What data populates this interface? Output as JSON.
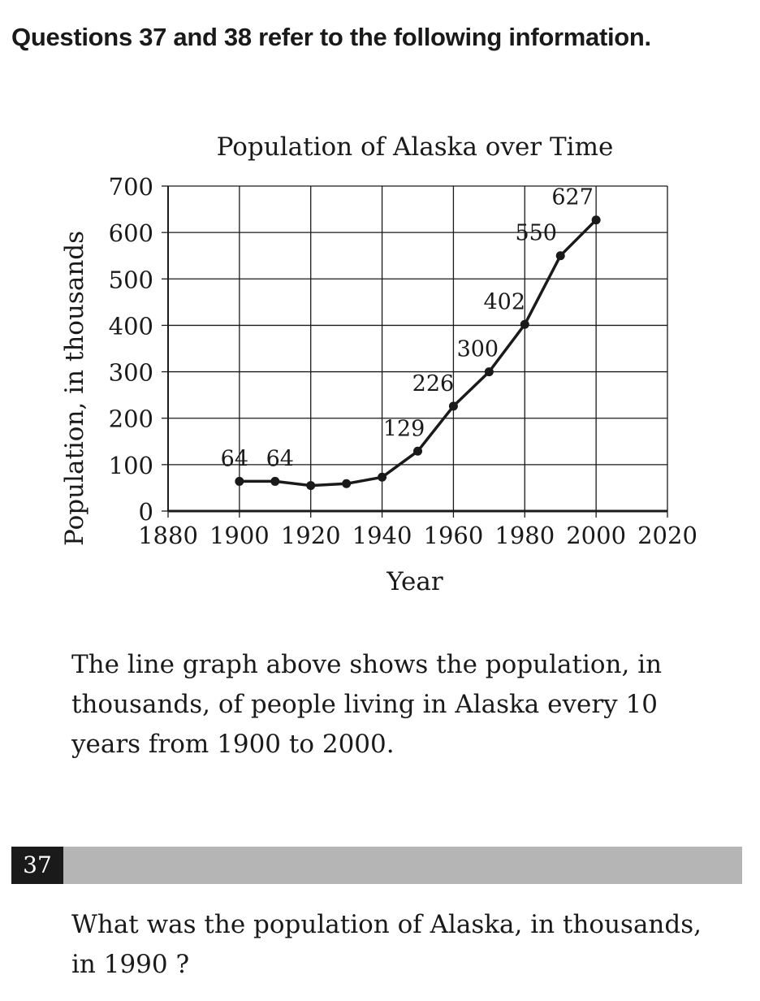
{
  "header": {
    "text": "Questions 37 and 38 refer to the following information."
  },
  "chart_data": {
    "type": "line",
    "title": "Population of Alaska over Time",
    "xlabel": "Year",
    "ylabel": "Population, in thousands",
    "xlim": [
      1880,
      2020
    ],
    "ylim": [
      0,
      700
    ],
    "x_ticks": [
      1880,
      1900,
      1920,
      1940,
      1960,
      1980,
      2000,
      2020
    ],
    "y_ticks": [
      0,
      100,
      200,
      300,
      400,
      500,
      600,
      700
    ],
    "grid": true,
    "x": [
      1900,
      1910,
      1920,
      1930,
      1940,
      1950,
      1960,
      1970,
      1980,
      1990,
      2000
    ],
    "y": [
      64,
      64,
      55,
      59,
      73,
      129,
      226,
      300,
      402,
      550,
      627
    ],
    "labels": [
      "64",
      "64",
      "",
      "",
      "",
      "129",
      "226",
      "300",
      "402",
      "550",
      "627"
    ]
  },
  "intro": {
    "text": "The line graph above shows the population, in thousands, of people living in Alaska every 10 years from 1900 to 2000."
  },
  "question": {
    "number": "37",
    "text": "What was the population of Alaska, in thousands, in 1990 ?"
  }
}
